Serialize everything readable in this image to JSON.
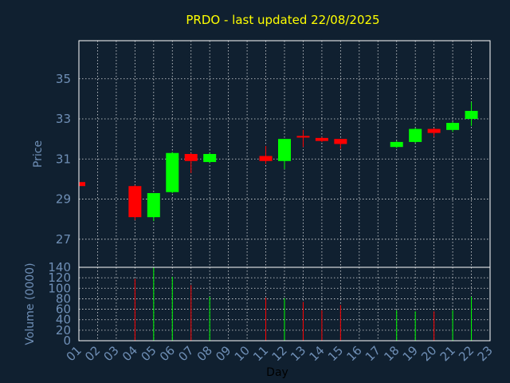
{
  "title": "PRDO - last updated 22/08/2025",
  "colors": {
    "background": "#102030",
    "title": "#ffff00",
    "axis_text": "#6f8fb6",
    "up": "#00ff00",
    "down": "#ff0000",
    "grid": "#ffffff"
  },
  "chart_data": [
    {
      "type": "candlestick",
      "ylabel": "Price",
      "ylim": [
        25.6,
        36.9
      ],
      "yticks": [
        27,
        29,
        31,
        33,
        35
      ],
      "grid": true,
      "x_categories": [
        "01",
        "02",
        "03",
        "04",
        "05",
        "06",
        "07",
        "08",
        "09",
        "10",
        "11",
        "12",
        "13",
        "14",
        "15",
        "16",
        "17",
        "18",
        "19",
        "20",
        "21",
        "22",
        "23"
      ],
      "candles": [
        {
          "day": "01",
          "open": 29.85,
          "close": 29.65,
          "high": 29.85,
          "low": 29.65
        },
        {
          "day": "04",
          "open": 29.65,
          "close": 28.1,
          "high": 29.7,
          "low": 27.95
        },
        {
          "day": "05",
          "open": 28.1,
          "close": 29.3,
          "high": 29.3,
          "low": 27.9
        },
        {
          "day": "06",
          "open": 29.35,
          "close": 31.3,
          "high": 31.35,
          "low": 29.3
        },
        {
          "day": "07",
          "open": 31.25,
          "close": 30.9,
          "high": 31.3,
          "low": 30.3
        },
        {
          "day": "08",
          "open": 30.85,
          "close": 31.25,
          "high": 31.3,
          "low": 30.8
        },
        {
          "day": "11",
          "open": 31.15,
          "close": 30.9,
          "high": 31.65,
          "low": 30.75
        },
        {
          "day": "12",
          "open": 30.9,
          "close": 32.0,
          "high": 32.0,
          "low": 30.5
        },
        {
          "day": "13",
          "open": 32.15,
          "close": 32.1,
          "high": 32.45,
          "low": 31.6
        },
        {
          "day": "14",
          "open": 32.05,
          "close": 31.9,
          "high": 32.1,
          "low": 31.85
        },
        {
          "day": "15",
          "open": 32.0,
          "close": 31.75,
          "high": 32.0,
          "low": 31.5
        },
        {
          "day": "18",
          "open": 31.6,
          "close": 31.85,
          "high": 31.9,
          "low": 31.55
        },
        {
          "day": "19",
          "open": 31.85,
          "close": 32.5,
          "high": 32.55,
          "low": 31.8
        },
        {
          "day": "20",
          "open": 32.5,
          "close": 32.3,
          "high": 32.55,
          "low": 32.1
        },
        {
          "day": "21",
          "open": 32.45,
          "close": 32.8,
          "high": 32.85,
          "low": 32.35
        },
        {
          "day": "22",
          "open": 33.0,
          "close": 33.4,
          "high": 33.85,
          "low": 32.65
        }
      ]
    },
    {
      "type": "bar",
      "ylabel": "Volume (0000)",
      "xlabel": "Day",
      "ylim": [
        0,
        140
      ],
      "yticks": [
        0,
        20,
        40,
        60,
        80,
        100,
        120,
        140
      ],
      "grid": true,
      "x_categories": [
        "01",
        "02",
        "03",
        "04",
        "05",
        "06",
        "07",
        "08",
        "09",
        "10",
        "11",
        "12",
        "13",
        "14",
        "15",
        "16",
        "17",
        "18",
        "19",
        "20",
        "21",
        "22",
        "23"
      ],
      "bars": [
        {
          "day": "04",
          "value": 118,
          "direction": "down"
        },
        {
          "day": "05",
          "value": 140,
          "direction": "up"
        },
        {
          "day": "06",
          "value": 122,
          "direction": "up"
        },
        {
          "day": "07",
          "value": 106,
          "direction": "down"
        },
        {
          "day": "08",
          "value": 84,
          "direction": "up"
        },
        {
          "day": "11",
          "value": 82,
          "direction": "down"
        },
        {
          "day": "12",
          "value": 81,
          "direction": "up"
        },
        {
          "day": "13",
          "value": 74,
          "direction": "down"
        },
        {
          "day": "14",
          "value": 58,
          "direction": "down"
        },
        {
          "day": "15",
          "value": 68,
          "direction": "down"
        },
        {
          "day": "18",
          "value": 58,
          "direction": "up"
        },
        {
          "day": "19",
          "value": 56,
          "direction": "up"
        },
        {
          "day": "20",
          "value": 56,
          "direction": "down"
        },
        {
          "day": "21",
          "value": 58,
          "direction": "up"
        },
        {
          "day": "22",
          "value": 84,
          "direction": "up"
        }
      ]
    }
  ]
}
